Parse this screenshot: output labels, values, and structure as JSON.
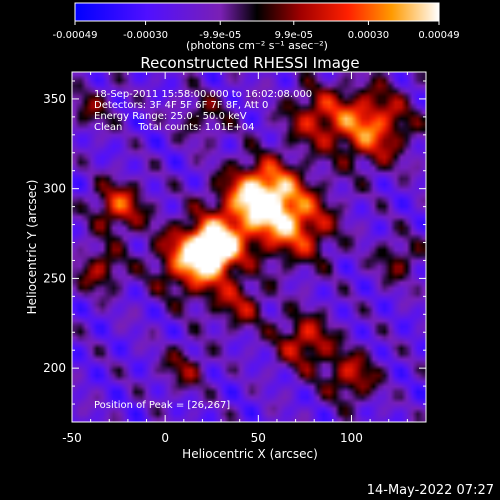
{
  "chart_data": {
    "type": "heatmap",
    "title": "Reconstructed RHESSI Image",
    "xlabel": "Heliocentric X (arcsec)",
    "ylabel": "Heliocentric Y (arcsec)",
    "xlim": [
      -50,
      140
    ],
    "ylim": [
      170,
      365
    ],
    "xticks": [
      "-50",
      "0",
      "50",
      "100"
    ],
    "xtick_values": [
      -50,
      0,
      50,
      100
    ],
    "yticks": [
      "200",
      "250",
      "300",
      "350"
    ],
    "ytick_values": [
      200,
      250,
      300,
      350
    ],
    "colorbar": {
      "tick_labels": [
        "-0.00049",
        "-0.00030",
        "-9.9e-05",
        "9.9e-05",
        "0.00030",
        "0.00049"
      ],
      "tick_values": [
        -0.00049,
        -0.0003,
        -9.9e-05,
        9.9e-05,
        0.0003,
        0.00049
      ],
      "range": [
        -0.00049,
        0.00049
      ],
      "units_label": "(photons cm⁻² s⁻¹ asec⁻²)"
    },
    "annotations": [
      "18-Sep-2011 15:58:00.000 to 16:02:08.000",
      "Detectors: 3F 4F 5F 6F 7F 8F, Att 0",
      "Energy Range: 25.0 - 50.0 keV",
      "Clean     Total counts: 1.01E+04"
    ],
    "peak_label": "Position of Peak = [26,267]",
    "peak": [
      26,
      267
    ],
    "sources": [
      {
        "x": 26,
        "y": 267,
        "amp": 1.0,
        "sigma": 9
      },
      {
        "x": 15,
        "y": 260,
        "amp": 0.75,
        "sigma": 14
      },
      {
        "x": 45,
        "y": 290,
        "amp": 0.6,
        "sigma": 14
      },
      {
        "x": 70,
        "y": 280,
        "amp": 0.65,
        "sigma": 15
      },
      {
        "x": 55,
        "y": 300,
        "amp": 0.55,
        "sigma": 12
      },
      {
        "x": 110,
        "y": 335,
        "amp": 0.7,
        "sigma": 15
      },
      {
        "x": 80,
        "y": 340,
        "amp": 0.45,
        "sigma": 12
      },
      {
        "x": -25,
        "y": 290,
        "amp": 0.6,
        "sigma": 10
      },
      {
        "x": -35,
        "y": 255,
        "amp": 0.45,
        "sigma": 9
      },
      {
        "x": 75,
        "y": 215,
        "amp": 0.55,
        "sigma": 11
      },
      {
        "x": 100,
        "y": 195,
        "amp": 0.5,
        "sigma": 10
      },
      {
        "x": 10,
        "y": 200,
        "amp": 0.35,
        "sigma": 9
      },
      {
        "x": 40,
        "y": 235,
        "amp": 0.4,
        "sigma": 10
      },
      {
        "x": 125,
        "y": 260,
        "amp": 0.35,
        "sigma": 9
      },
      {
        "x": 20,
        "y": 340,
        "amp": 0.3,
        "sigma": 10
      },
      {
        "x": -40,
        "y": 345,
        "amp": 0.3,
        "sigma": 9
      }
    ]
  },
  "footer": {
    "timestamp": "14-May-2022 07:27"
  }
}
